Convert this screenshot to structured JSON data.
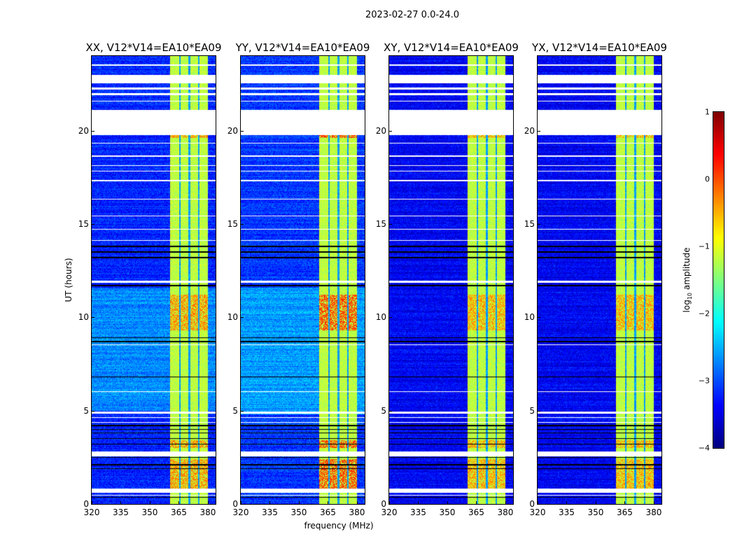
{
  "chart_data": {
    "type": "heatmap",
    "title": "2023-02-27 0.0-24.0",
    "xlabel": "frequency (MHz)",
    "ylabel": "UT (hours)",
    "xlim": [
      320,
      384
    ],
    "ylim": [
      0,
      24
    ],
    "xticks": [
      "320",
      "335",
      "350",
      "365",
      "380"
    ],
    "xtick_values": [
      320,
      335,
      350,
      365,
      380
    ],
    "yticks": [
      "0",
      "5",
      "10",
      "15",
      "20"
    ],
    "ytick_values": [
      0,
      5,
      10,
      15,
      20
    ],
    "colorbar": {
      "label_main": "log",
      "label_sub": "10",
      "label_rest": " amplitude",
      "range": [
        -4,
        1
      ],
      "ticks": [
        "1",
        "0",
        "−1",
        "−2",
        "−3",
        "−4"
      ],
      "tick_values": [
        1,
        0,
        -1,
        -2,
        -3,
        -4
      ],
      "colormap": "jet"
    },
    "panels": [
      {
        "title": "XX, V12*V14=EA10*EA09",
        "baseline_log_amp": -3.2,
        "bright_ut": [
          5.0,
          11.6
        ],
        "hot_level": -0.3
      },
      {
        "title": "YY, V12*V14=EA10*EA09",
        "baseline_log_amp": -3.1,
        "bright_ut": [
          4.8,
          11.6
        ],
        "hot_level": 0.05
      },
      {
        "title": "XY, V12*V14=EA10*EA09",
        "baseline_log_amp": -3.4,
        "bright_ut": null,
        "hot_level": -0.4
      },
      {
        "title": "YX, V12*V14=EA10*EA09",
        "baseline_log_amp": -3.4,
        "bright_ut": null,
        "hot_level": -0.4
      }
    ],
    "rfi_band_mhz": [
      360.5,
      380.2
    ],
    "rfi_band_log_amp": -1.2,
    "rfi_gaps_mhz": [
      365.5,
      370.5,
      375.3
    ],
    "hot_ut_ranges": [
      [
        9.3,
        11.2
      ],
      [
        0.8,
        2.4
      ],
      [
        3.0,
        3.4
      ],
      [
        19.6,
        19.75
      ]
    ],
    "flagged_ut_ranges": [
      [
        23.48,
        23.54
      ],
      [
        22.55,
        23.0
      ],
      [
        22.2,
        22.3
      ],
      [
        21.9,
        22.0
      ],
      [
        21.55,
        21.6
      ],
      [
        19.75,
        21.1
      ],
      [
        19.3,
        19.36
      ],
      [
        18.6,
        18.66
      ],
      [
        18.1,
        18.15
      ],
      [
        17.8,
        17.85
      ],
      [
        17.3,
        17.35
      ],
      [
        16.3,
        16.35
      ],
      [
        15.4,
        15.45
      ],
      [
        14.7,
        14.75
      ],
      [
        14.1,
        14.15
      ],
      [
        11.85,
        11.98
      ],
      [
        8.5,
        8.55
      ],
      [
        6.0,
        6.05
      ],
      [
        4.85,
        4.95
      ],
      [
        4.6,
        4.66
      ],
      [
        4.35,
        4.4
      ],
      [
        2.55,
        2.8
      ],
      [
        0.6,
        0.83
      ],
      [
        0.45,
        0.5
      ]
    ],
    "dropout_ut": [
      13.8,
      13.5,
      13.2,
      11.7,
      8.9,
      8.7,
      6.8,
      4.2,
      4.0,
      3.8,
      3.5,
      3.2,
      2.5,
      2.1,
      1.9,
      0.35
    ]
  }
}
